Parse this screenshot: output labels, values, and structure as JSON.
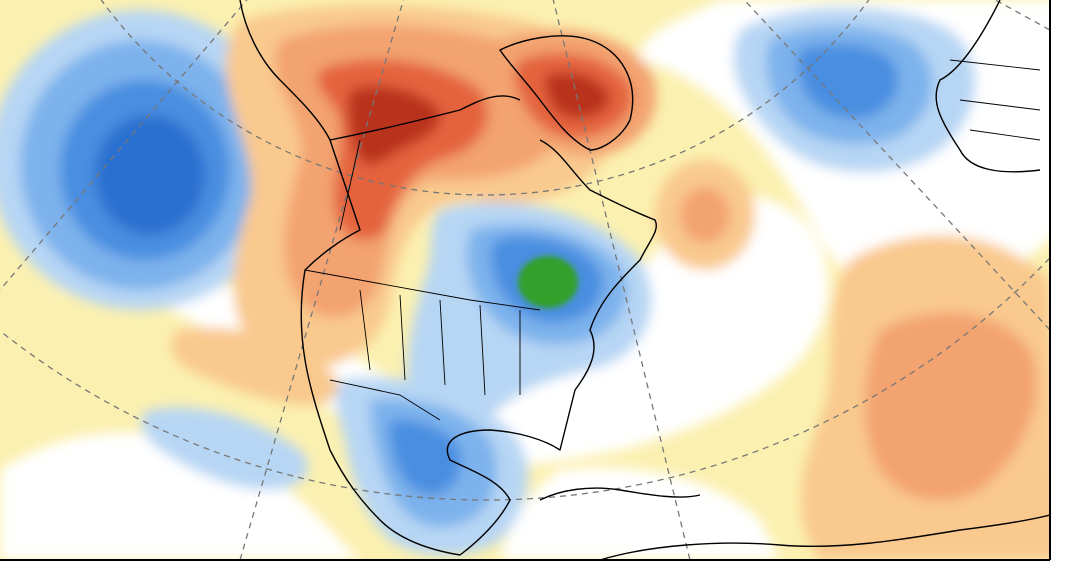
{
  "map": {
    "projection": "polar-stereographic",
    "region": "north-america-north-atlantic",
    "graticule": "dashed",
    "palette": {
      "cold_4": "#2b6fd0",
      "cold_3": "#4a8ee0",
      "cold_2": "#7db2ec",
      "cold_1": "#b7d6f4",
      "neutral": "#ffffff",
      "warm_1": "#fbf0b0",
      "warm_2": "#f9c98e",
      "warm_3": "#f3a36f",
      "warm_4": "#e4643e",
      "warm_5": "#b9321f",
      "extreme_cold": "#33a02c",
      "coastline": "#000000",
      "graticule": "#777777"
    },
    "anomaly_fields": [
      {
        "id": "north-pacific-cold",
        "sign": "cold"
      },
      {
        "id": "alaska-western-canada-warm",
        "sign": "warm"
      },
      {
        "id": "greenland-warm",
        "sign": "warm"
      },
      {
        "id": "great-lakes-cold",
        "sign": "cold"
      },
      {
        "id": "ontario-quebec-extreme-cold",
        "sign": "cold"
      },
      {
        "id": "mexico-gulf-cold",
        "sign": "cold"
      },
      {
        "id": "europe-cold",
        "sign": "cold"
      },
      {
        "id": "east-atlantic-warm",
        "sign": "warm"
      },
      {
        "id": "western-atlantic-warm-patch",
        "sign": "warm"
      }
    ]
  }
}
